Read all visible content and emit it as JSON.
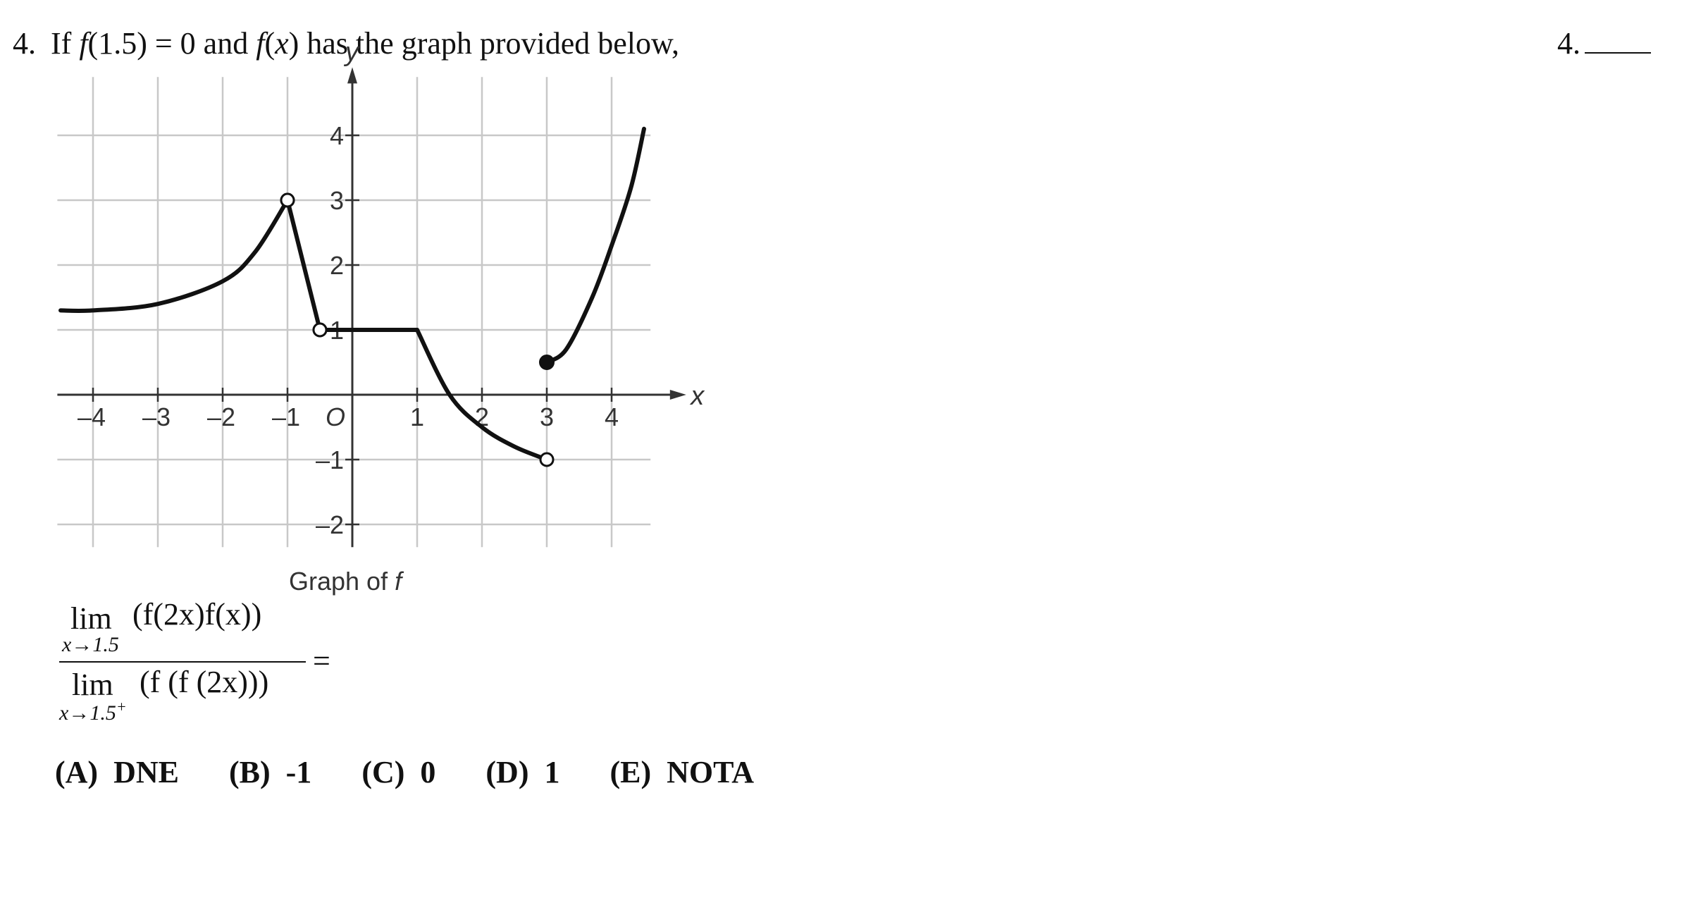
{
  "question4": {
    "number": "4.",
    "text_prefix": "If",
    "f_open": "f",
    "arg1": "(1.5)",
    "eq": "= 0 and",
    "f2": "f",
    "arg2_open": "(",
    "arg2_var": "x",
    "arg2_close": ")",
    "text_suffix": "has the graph provided below,",
    "answer_label": "4."
  },
  "graph": {
    "x_axis_label": "x",
    "y_axis_label": "y",
    "origin_label": "O",
    "caption_text": "Graph of",
    "caption_var": "f",
    "x_ticks": [
      "–4",
      "–3",
      "–2",
      "–1",
      "1",
      "2",
      "3",
      "4"
    ],
    "y_ticks": [
      "4",
      "3",
      "2",
      "1",
      "–1",
      "–2"
    ]
  },
  "chart_data": {
    "type": "line",
    "title": "",
    "xlabel": "x",
    "ylabel": "y",
    "xlim": [
      -4.5,
      4.6
    ],
    "ylim": [
      -2.3,
      4.6
    ],
    "grid": true,
    "caption": "Graph of f",
    "pieces": [
      {
        "points": [
          [
            -4.5,
            1.3
          ],
          [
            -4,
            1.3
          ],
          [
            -3,
            1.4
          ],
          [
            -2,
            1.75
          ],
          [
            -1.5,
            2.2
          ],
          [
            -1,
            3
          ]
        ],
        "start": "none",
        "end": "open"
      },
      {
        "points": [
          [
            -1,
            3
          ],
          [
            -0.5,
            1
          ]
        ],
        "start": "open",
        "end": "open"
      },
      {
        "points": [
          [
            -0.5,
            1
          ],
          [
            1,
            1
          ]
        ],
        "start": "open",
        "end": "none"
      },
      {
        "points": [
          [
            1,
            1
          ],
          [
            1.5,
            0
          ],
          [
            2,
            -0.5
          ],
          [
            2.5,
            -0.8
          ],
          [
            3,
            -1
          ]
        ],
        "start": "none",
        "end": "open"
      },
      {
        "points": [
          [
            3,
            0.5
          ],
          [
            3.3,
            0.7
          ],
          [
            3.7,
            1.5
          ],
          [
            4,
            2.3
          ],
          [
            4.3,
            3.2
          ],
          [
            4.5,
            4.1
          ]
        ],
        "start": "closed",
        "end": "none"
      }
    ]
  },
  "expression": {
    "num_lim": "lim",
    "num_sub": "x→1.5",
    "num_body": "(f(2x)f(x))",
    "den_lim": "lim",
    "den_sub": "x→1.5",
    "den_sup": "+",
    "den_body": "(f (f (2x)))",
    "equals": "="
  },
  "choices": [
    {
      "letter": "(A)",
      "text": "DNE"
    },
    {
      "letter": "(B)",
      "text": "-1"
    },
    {
      "letter": "(C)",
      "text": "0"
    },
    {
      "letter": "(D)",
      "text": "1"
    },
    {
      "letter": "(E)",
      "text": "NOTA"
    }
  ]
}
